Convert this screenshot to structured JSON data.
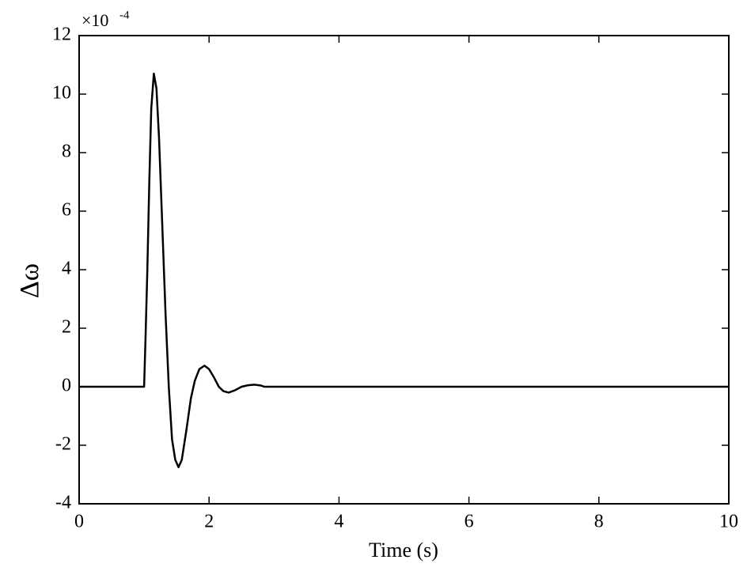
{
  "chart_data": {
    "type": "line",
    "xlabel": "Time (s)",
    "ylabel": "Δω",
    "y_multiplier": {
      "base": "×10",
      "exponent": "-4"
    },
    "x": [
      0,
      1.0,
      1.02,
      1.05,
      1.08,
      1.11,
      1.15,
      1.19,
      1.23,
      1.28,
      1.33,
      1.38,
      1.43,
      1.48,
      1.53,
      1.58,
      1.65,
      1.72,
      1.78,
      1.85,
      1.93,
      2.0,
      2.08,
      2.15,
      2.22,
      2.3,
      2.4,
      2.5,
      2.6,
      2.7,
      2.8,
      2.85,
      10
    ],
    "values": [
      0,
      0,
      1.5,
      4,
      7,
      9.5,
      10.7,
      10.2,
      8.5,
      5.5,
      2.5,
      0,
      -1.8,
      -2.5,
      -2.75,
      -2.5,
      -1.5,
      -0.4,
      0.2,
      0.6,
      0.72,
      0.6,
      0.3,
      0,
      -0.15,
      -0.2,
      -0.12,
      0,
      0.05,
      0.07,
      0.04,
      0,
      0
    ],
    "color": "#000000",
    "xlim": [
      0,
      10
    ],
    "xticks": [
      0,
      2,
      4,
      6,
      8,
      10
    ],
    "ylim": [
      -4,
      12
    ],
    "yticks": [
      -4,
      -2,
      0,
      2,
      4,
      6,
      8,
      10,
      12
    ],
    "grid": false
  }
}
